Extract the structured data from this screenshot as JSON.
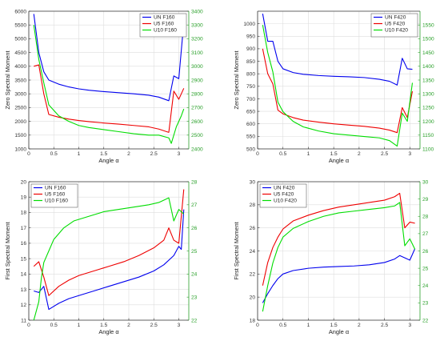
{
  "colors": {
    "un": "#0000ee",
    "u5": "#ee0000",
    "u10": "#00dd00",
    "axis": "#333333",
    "right_axis": "#2aa02a",
    "grid": "#dddddd"
  },
  "chart_data": [
    {
      "type": "line",
      "xlabel": "Angle α",
      "ylabel": "Zero Spectral Moment",
      "xlim": [
        0,
        3.2
      ],
      "ylim": [
        1000,
        6000
      ],
      "y2lim": [
        2400,
        3400
      ],
      "xticks": [
        0,
        0.5,
        1,
        1.5,
        2,
        2.5,
        3
      ],
      "yticks": [
        1000,
        1500,
        2000,
        2500,
        3000,
        3500,
        4000,
        4500,
        5000,
        5500,
        6000
      ],
      "y2ticks": [
        2400,
        2500,
        2600,
        2700,
        2800,
        2900,
        3000,
        3100,
        3200,
        3300,
        3400
      ],
      "grid": true,
      "legend": "top-right",
      "series": [
        {
          "name": "UN F160",
          "color": "un",
          "axis": "left",
          "x": [
            0.1,
            0.2,
            0.3,
            0.4,
            0.6,
            0.8,
            1.0,
            1.2,
            1.5,
            1.8,
            2.1,
            2.4,
            2.6,
            2.8,
            2.9,
            3.0,
            3.1
          ],
          "y": [
            5900,
            4500,
            3800,
            3500,
            3350,
            3250,
            3180,
            3130,
            3080,
            3040,
            3000,
            2950,
            2880,
            2750,
            3650,
            3550,
            5600
          ]
        },
        {
          "name": "U5 F160",
          "color": "u5",
          "axis": "left",
          "x": [
            0.1,
            0.2,
            0.3,
            0.4,
            0.6,
            0.8,
            1.0,
            1.2,
            1.5,
            1.8,
            2.1,
            2.4,
            2.6,
            2.8,
            2.9,
            3.0,
            3.1
          ],
          "y": [
            4000,
            4050,
            3000,
            2250,
            2150,
            2080,
            2030,
            1990,
            1940,
            1900,
            1850,
            1800,
            1720,
            1600,
            3100,
            2800,
            3200
          ]
        },
        {
          "name": "U10 F160",
          "color": "u10",
          "axis": "right",
          "x": [
            0.1,
            0.2,
            0.3,
            0.4,
            0.6,
            0.8,
            1.0,
            1.2,
            1.5,
            1.8,
            2.1,
            2.4,
            2.6,
            2.8,
            2.85,
            2.95,
            3.05,
            3.1
          ],
          "y": [
            3300,
            3050,
            2880,
            2720,
            2640,
            2600,
            2570,
            2555,
            2540,
            2525,
            2510,
            2500,
            2500,
            2480,
            2440,
            2560,
            2640,
            2690
          ]
        }
      ]
    },
    {
      "type": "line",
      "xlabel": "Angle α",
      "ylabel": "Zero Spectral Moment",
      "xlim": [
        0,
        3.2
      ],
      "ylim": [
        500,
        1050
      ],
      "y2lim": [
        1100,
        1600
      ],
      "xticks": [
        0,
        0.5,
        1,
        1.5,
        2,
        2.5,
        3
      ],
      "yticks": [
        500,
        550,
        600,
        650,
        700,
        750,
        800,
        850,
        900,
        950,
        1000
      ],
      "y2ticks": [
        1100,
        1150,
        1200,
        1250,
        1300,
        1350,
        1400,
        1450,
        1500,
        1550
      ],
      "grid": true,
      "legend": "top-right",
      "series": [
        {
          "name": "UN F420",
          "color": "un",
          "axis": "left",
          "x": [
            0.1,
            0.2,
            0.3,
            0.4,
            0.5,
            0.7,
            0.9,
            1.2,
            1.5,
            1.8,
            2.1,
            2.4,
            2.6,
            2.75,
            2.85,
            2.95,
            3.05
          ],
          "y": [
            1040,
            930,
            930,
            850,
            820,
            805,
            798,
            793,
            790,
            788,
            785,
            778,
            770,
            755,
            862,
            820,
            818
          ]
        },
        {
          "name": "U5 F420",
          "color": "u5",
          "axis": "left",
          "x": [
            0.1,
            0.2,
            0.3,
            0.4,
            0.5,
            0.7,
            0.9,
            1.2,
            1.5,
            1.8,
            2.1,
            2.4,
            2.6,
            2.75,
            2.85,
            2.95,
            3.05
          ],
          "y": [
            900,
            800,
            760,
            655,
            640,
            625,
            615,
            607,
            600,
            595,
            590,
            583,
            575,
            565,
            665,
            625,
            730
          ]
        },
        {
          "name": "U10 F420",
          "color": "u10",
          "axis": "right",
          "x": [
            0.1,
            0.2,
            0.3,
            0.4,
            0.5,
            0.7,
            0.9,
            1.2,
            1.5,
            1.8,
            2.1,
            2.4,
            2.6,
            2.75,
            2.85,
            2.95,
            3.05
          ],
          "y": [
            1550,
            1450,
            1380,
            1270,
            1235,
            1200,
            1180,
            1165,
            1155,
            1150,
            1145,
            1140,
            1130,
            1110,
            1230,
            1200,
            1340
          ]
        }
      ]
    },
    {
      "type": "line",
      "xlabel": "Angle α",
      "ylabel": "First Spectral Moment",
      "xlim": [
        0,
        3.2
      ],
      "ylim": [
        11,
        20
      ],
      "y2lim": [
        22,
        28
      ],
      "xticks": [
        0,
        0.5,
        1,
        1.5,
        2,
        2.5,
        3
      ],
      "yticks": [
        11,
        12,
        13,
        14,
        15,
        16,
        17,
        18,
        19,
        20
      ],
      "y2ticks": [
        22,
        23,
        24,
        25,
        26,
        27,
        28
      ],
      "grid": true,
      "legend": "top-left",
      "series": [
        {
          "name": "UN F160",
          "color": "un",
          "axis": "left",
          "x": [
            0.1,
            0.2,
            0.3,
            0.4,
            0.6,
            0.8,
            1.0,
            1.3,
            1.6,
            1.9,
            2.2,
            2.5,
            2.7,
            2.9,
            3.0,
            3.05,
            3.1
          ],
          "y": [
            12.9,
            12.8,
            13.2,
            11.7,
            12.1,
            12.4,
            12.6,
            12.9,
            13.2,
            13.5,
            13.8,
            14.2,
            14.6,
            15.2,
            15.8,
            15.6,
            18.2
          ]
        },
        {
          "name": "U5 F160",
          "color": "u5",
          "axis": "left",
          "x": [
            0.1,
            0.2,
            0.3,
            0.4,
            0.6,
            0.8,
            1.0,
            1.3,
            1.6,
            1.9,
            2.2,
            2.5,
            2.7,
            2.8,
            2.9,
            3.0,
            3.1
          ],
          "y": [
            14.5,
            14.8,
            13.8,
            12.6,
            13.2,
            13.6,
            13.9,
            14.2,
            14.5,
            14.8,
            15.2,
            15.7,
            16.2,
            17.0,
            16.2,
            16.0,
            19.5
          ]
        },
        {
          "name": "U10 F160",
          "color": "u10",
          "axis": "right",
          "x": [
            0.1,
            0.2,
            0.25,
            0.3,
            0.4,
            0.5,
            0.7,
            0.9,
            1.2,
            1.5,
            1.8,
            2.1,
            2.4,
            2.6,
            2.8,
            2.9,
            3.0,
            3.1
          ],
          "y": [
            22.0,
            22.8,
            23.8,
            24.5,
            25.0,
            25.5,
            26.0,
            26.3,
            26.5,
            26.7,
            26.8,
            26.9,
            27.0,
            27.1,
            27.3,
            26.3,
            26.8,
            26.6
          ]
        }
      ]
    },
    {
      "type": "line",
      "xlabel": "Angle α",
      "ylabel": "First Spectral Moment",
      "xlim": [
        0,
        3.2
      ],
      "ylim": [
        18,
        30
      ],
      "y2lim": [
        22,
        30
      ],
      "xticks": [
        0,
        0.5,
        1,
        1.5,
        2,
        2.5,
        3
      ],
      "yticks": [
        18,
        20,
        22,
        24,
        26,
        28,
        30
      ],
      "y2ticks": [
        22,
        23,
        24,
        25,
        26,
        27,
        28,
        29,
        30
      ],
      "grid": true,
      "legend": "top-left",
      "series": [
        {
          "name": "UN F420",
          "color": "un",
          "axis": "left",
          "x": [
            0.1,
            0.2,
            0.3,
            0.4,
            0.5,
            0.7,
            1.0,
            1.3,
            1.6,
            1.9,
            2.2,
            2.5,
            2.7,
            2.8,
            2.9,
            3.0,
            3.1
          ],
          "y": [
            19.5,
            20.3,
            21.0,
            21.6,
            22.0,
            22.3,
            22.5,
            22.6,
            22.65,
            22.7,
            22.8,
            23.0,
            23.3,
            23.6,
            23.4,
            23.2,
            24.2
          ]
        },
        {
          "name": "U5 F420",
          "color": "u5",
          "axis": "left",
          "x": [
            0.1,
            0.2,
            0.3,
            0.4,
            0.5,
            0.7,
            1.0,
            1.3,
            1.6,
            1.9,
            2.2,
            2.5,
            2.7,
            2.8,
            2.9,
            3.0,
            3.1
          ],
          "y": [
            21.0,
            23.0,
            24.3,
            25.2,
            25.9,
            26.6,
            27.1,
            27.5,
            27.8,
            28.0,
            28.2,
            28.4,
            28.7,
            29.0,
            26.0,
            26.5,
            26.4
          ]
        },
        {
          "name": "U10 F420",
          "color": "u10",
          "axis": "right",
          "x": [
            0.1,
            0.2,
            0.3,
            0.4,
            0.5,
            0.7,
            1.0,
            1.3,
            1.6,
            1.9,
            2.2,
            2.5,
            2.7,
            2.8,
            2.9,
            3.0,
            3.1
          ],
          "y": [
            22.5,
            24.0,
            25.3,
            26.2,
            26.8,
            27.3,
            27.7,
            28.0,
            28.2,
            28.3,
            28.4,
            28.5,
            28.6,
            28.8,
            26.3,
            26.7,
            26.1
          ]
        }
      ]
    }
  ]
}
